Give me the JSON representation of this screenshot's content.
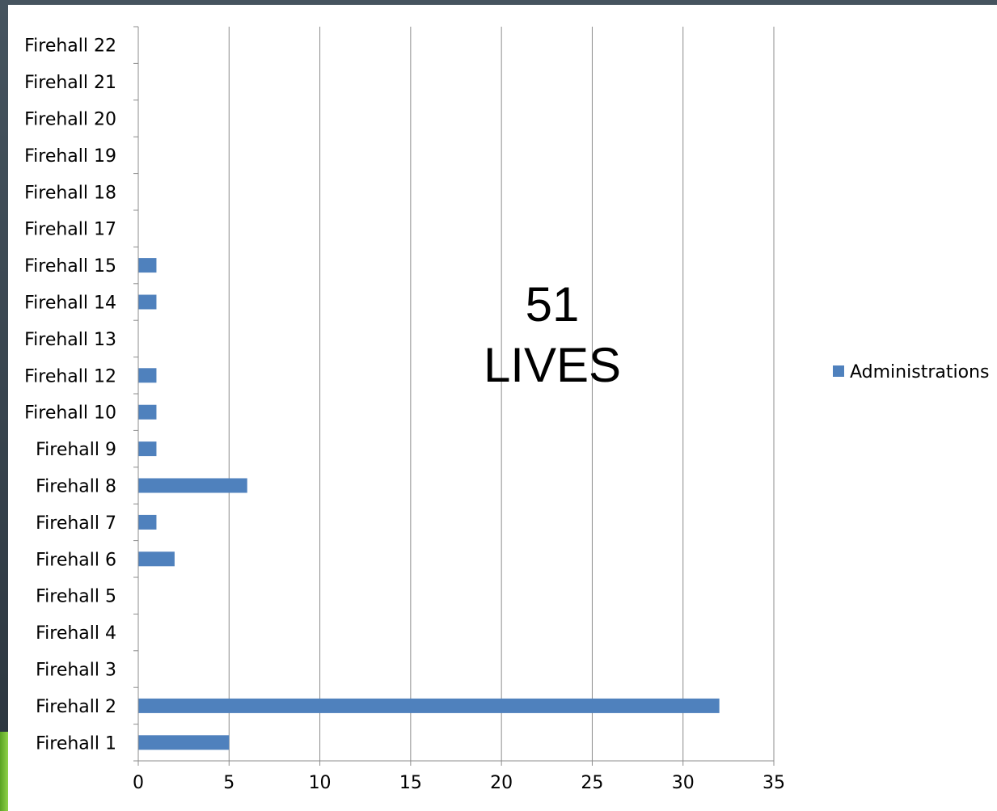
{
  "colors": {
    "bar": "#4f81bd",
    "grid": "#8c8c8c",
    "axis": "#8c8c8c"
  },
  "annotation": {
    "line1": "51",
    "line2": "LIVES"
  },
  "chart_data": {
    "type": "bar",
    "orientation": "horizontal",
    "categories": [
      "Firehall 1",
      "Firehall 2",
      "Firehall 3",
      "Firehall 4",
      "Firehall 5",
      "Firehall 6",
      "Firehall 7",
      "Firehall 8",
      "Firehall 9",
      "Firehall 10",
      "Firehall 12",
      "Firehall 13",
      "Firehall 14",
      "Firehall 15",
      "Firehall 17",
      "Firehall 18",
      "Firehall 19",
      "Firehall 20",
      "Firehall 21",
      "Firehall 22"
    ],
    "series": [
      {
        "name": "Administrations",
        "values": [
          5,
          32,
          0,
          0,
          0,
          2,
          1,
          6,
          1,
          1,
          1,
          0,
          1,
          1,
          0,
          0,
          0,
          0,
          0,
          0
        ]
      }
    ],
    "xlim": [
      0,
      35
    ],
    "xticks": [
      0,
      5,
      10,
      15,
      20,
      25,
      30,
      35
    ],
    "grid": "vertical major",
    "legend": "right",
    "title": "",
    "xlabel": "",
    "ylabel": ""
  }
}
